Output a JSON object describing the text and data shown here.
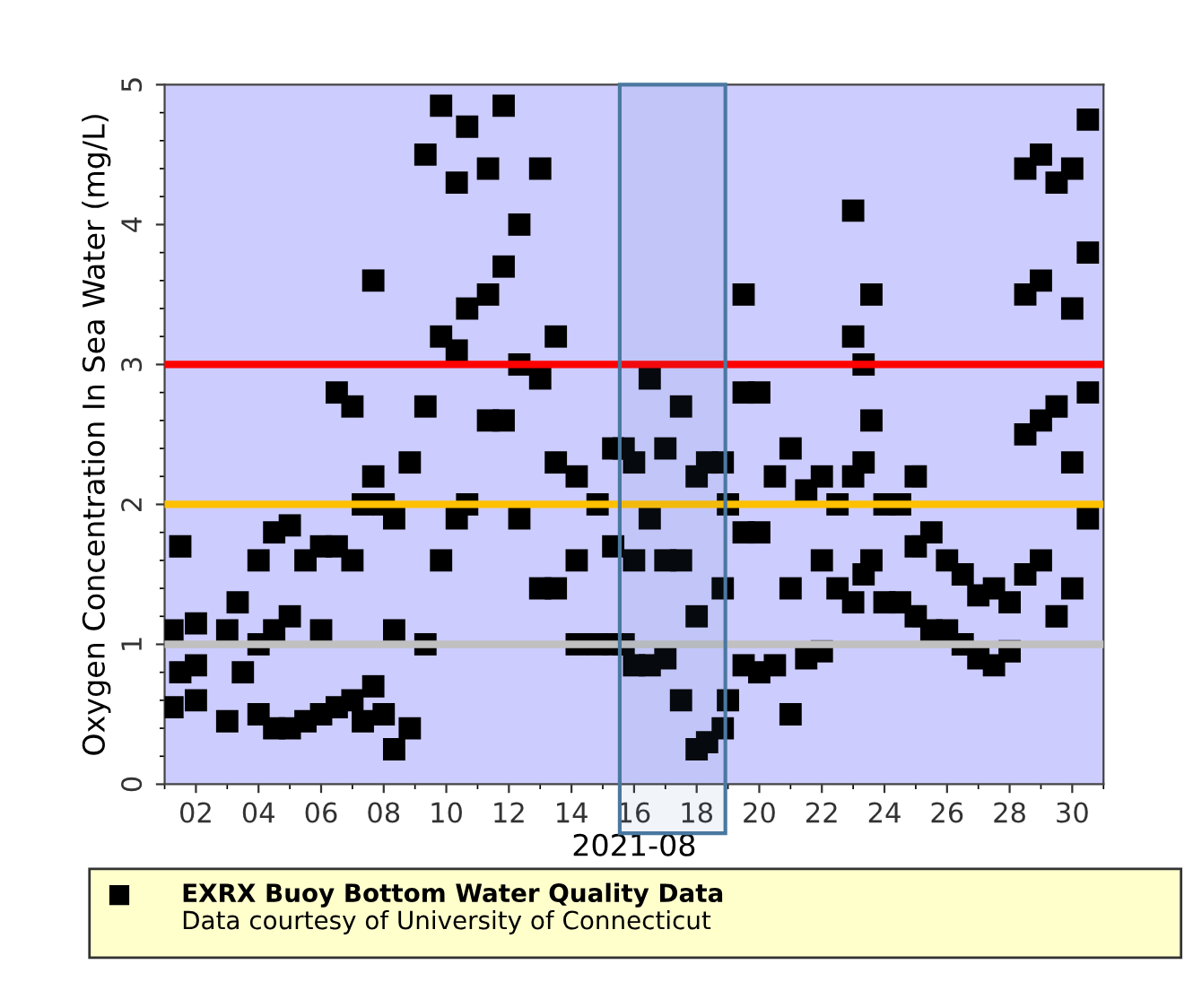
{
  "chart_data": {
    "type": "scatter",
    "xlabel": "2021-08",
    "ylabel": "Oxygen Concentration In Sea Water (mg/L)",
    "xlim": [
      "2021-08-01",
      "2021-08-31"
    ],
    "xticks": [
      {
        "value": "2021-08-02",
        "label": "02"
      },
      {
        "value": "2021-08-04",
        "label": "04"
      },
      {
        "value": "2021-08-06",
        "label": "06"
      },
      {
        "value": "2021-08-08",
        "label": "08"
      },
      {
        "value": "2021-08-10",
        "label": "10"
      },
      {
        "value": "2021-08-12",
        "label": "12"
      },
      {
        "value": "2021-08-14",
        "label": "14"
      },
      {
        "value": "2021-08-16",
        "label": "16"
      },
      {
        "value": "2021-08-18",
        "label": "18"
      },
      {
        "value": "2021-08-20",
        "label": "20"
      },
      {
        "value": "2021-08-22",
        "label": "22"
      },
      {
        "value": "2021-08-24",
        "label": "24"
      },
      {
        "value": "2021-08-26",
        "label": "26"
      },
      {
        "value": "2021-08-28",
        "label": "28"
      },
      {
        "value": "2021-08-30",
        "label": "30"
      }
    ],
    "ylim": [
      0,
      5
    ],
    "yticks": [
      0,
      1,
      2,
      3,
      4,
      5
    ],
    "marker": "square",
    "grid": false,
    "legend": "bottom",
    "series": [
      {
        "name": "EXRX Buoy Bottom Water Quality Data",
        "color": "#000000",
        "x": [
          "2021-08-01T06:00",
          "2021-08-01T06:00",
          "2021-08-01T12:00",
          "2021-08-01T12:00",
          "2021-08-02T00:00",
          "2021-08-02T00:00",
          "2021-08-02T00:00",
          "2021-08-03T00:00",
          "2021-08-03T00:00",
          "2021-08-03T08:00",
          "2021-08-03T12:00",
          "2021-08-04T00:00",
          "2021-08-04T00:00",
          "2021-08-04T00:00",
          "2021-08-04T12:00",
          "2021-08-04T12:00",
          "2021-08-04T12:00",
          "2021-08-05T00:00",
          "2021-08-05T00:00",
          "2021-08-05T00:00",
          "2021-08-05T12:00",
          "2021-08-05T12:00",
          "2021-08-06T00:00",
          "2021-08-06T00:00",
          "2021-08-06T00:00",
          "2021-08-06T12:00",
          "2021-08-06T12:00",
          "2021-08-06T12:00",
          "2021-08-07T00:00",
          "2021-08-07T00:00",
          "2021-08-07T00:00",
          "2021-08-07T08:00",
          "2021-08-07T08:00",
          "2021-08-07T16:00",
          "2021-08-07T16:00",
          "2021-08-07T16:00",
          "2021-08-08T00:00",
          "2021-08-08T00:00",
          "2021-08-08T08:00",
          "2021-08-08T08:00",
          "2021-08-08T08:00",
          "2021-08-08T20:00",
          "2021-08-08T20:00",
          "2021-08-09T08:00",
          "2021-08-09T08:00",
          "2021-08-09T08:00",
          "2021-08-09T20:00",
          "2021-08-09T20:00",
          "2021-08-09T20:00",
          "2021-08-10T08:00",
          "2021-08-10T08:00",
          "2021-08-10T08:00",
          "2021-08-10T16:00",
          "2021-08-10T16:00",
          "2021-08-10T16:00",
          "2021-08-11T08:00",
          "2021-08-11T08:00",
          "2021-08-11T08:00",
          "2021-08-11T20:00",
          "2021-08-11T20:00",
          "2021-08-11T20:00",
          "2021-08-12T08:00",
          "2021-08-12T08:00",
          "2021-08-12T08:00",
          "2021-08-13T00:00",
          "2021-08-13T00:00",
          "2021-08-13T00:00",
          "2021-08-13T12:00",
          "2021-08-13T12:00",
          "2021-08-13T12:00",
          "2021-08-14T04:00",
          "2021-08-14T04:00",
          "2021-08-14T04:00",
          "2021-08-14T20:00",
          "2021-08-14T20:00",
          "2021-08-15T08:00",
          "2021-08-15T08:00",
          "2021-08-15T08:00",
          "2021-08-15T16:00",
          "2021-08-15T16:00",
          "2021-08-16T00:00",
          "2021-08-16T00:00",
          "2021-08-16T00:00",
          "2021-08-16T12:00",
          "2021-08-16T12:00",
          "2021-08-16T12:00",
          "2021-08-17T00:00",
          "2021-08-17T00:00",
          "2021-08-17T00:00",
          "2021-08-17T12:00",
          "2021-08-17T12:00",
          "2021-08-17T12:00",
          "2021-08-18T00:00",
          "2021-08-18T00:00",
          "2021-08-18T00:00",
          "2021-08-18T08:00",
          "2021-08-18T08:00",
          "2021-08-18T20:00",
          "2021-08-18T20:00",
          "2021-08-18T20:00",
          "2021-08-19T00:00",
          "2021-08-19T00:00",
          "2021-08-19T12:00",
          "2021-08-19T12:00",
          "2021-08-19T12:00",
          "2021-08-19T12:00",
          "2021-08-20T00:00",
          "2021-08-20T00:00",
          "2021-08-20T00:00",
          "2021-08-20T12:00",
          "2021-08-20T12:00",
          "2021-08-21T00:00",
          "2021-08-21T00:00",
          "2021-08-21T00:00",
          "2021-08-21T12:00",
          "2021-08-21T12:00",
          "2021-08-22T00:00",
          "2021-08-22T00:00",
          "2021-08-22T00:00",
          "2021-08-22T12:00",
          "2021-08-22T12:00",
          "2021-08-23T00:00",
          "2021-08-23T00:00",
          "2021-08-23T00:00",
          "2021-08-23T00:00",
          "2021-08-23T08:00",
          "2021-08-23T08:00",
          "2021-08-23T08:00",
          "2021-08-23T14:00",
          "2021-08-23T14:00",
          "2021-08-23T14:00",
          "2021-08-24T00:00",
          "2021-08-24T00:00",
          "2021-08-24T12:00",
          "2021-08-24T12:00",
          "2021-08-25T00:00",
          "2021-08-25T00:00",
          "2021-08-25T00:00",
          "2021-08-25T12:00",
          "2021-08-25T12:00",
          "2021-08-26T00:00",
          "2021-08-26T00:00",
          "2021-08-26T12:00",
          "2021-08-26T12:00",
          "2021-08-27T00:00",
          "2021-08-27T00:00",
          "2021-08-27T12:00",
          "2021-08-27T12:00",
          "2021-08-28T00:00",
          "2021-08-28T00:00",
          "2021-08-28T12:00",
          "2021-08-28T12:00",
          "2021-08-28T12:00",
          "2021-08-28T12:00",
          "2021-08-29T00:00",
          "2021-08-29T00:00",
          "2021-08-29T00:00",
          "2021-08-29T00:00",
          "2021-08-29T12:00",
          "2021-08-29T12:00",
          "2021-08-29T12:00",
          "2021-08-30T00:00",
          "2021-08-30T00:00",
          "2021-08-30T00:00",
          "2021-08-30T00:00",
          "2021-08-30T12:00",
          "2021-08-30T12:00",
          "2021-08-30T12:00",
          "2021-08-30T12:00"
        ],
        "values": [
          0.55,
          1.1,
          0.8,
          1.7,
          0.6,
          0.85,
          1.15,
          0.45,
          1.1,
          1.3,
          0.8,
          0.5,
          1.0,
          1.6,
          0.4,
          1.1,
          1.8,
          0.4,
          1.2,
          1.85,
          0.45,
          1.6,
          0.5,
          1.1,
          1.7,
          0.55,
          1.7,
          2.8,
          0.6,
          1.6,
          2.7,
          0.45,
          2.0,
          0.7,
          2.2,
          3.6,
          0.5,
          2.0,
          0.25,
          1.1,
          1.9,
          0.4,
          2.3,
          1.0,
          2.7,
          4.5,
          1.6,
          3.2,
          4.85,
          1.9,
          3.1,
          4.3,
          2.0,
          3.4,
          4.7,
          2.6,
          3.5,
          4.4,
          2.6,
          3.7,
          4.85,
          1.9,
          3.0,
          4.0,
          1.4,
          2.9,
          4.4,
          1.4,
          2.3,
          3.2,
          1.0,
          1.6,
          2.2,
          1.0,
          2.0,
          1.0,
          1.7,
          2.4,
          1.0,
          2.4,
          0.85,
          1.6,
          2.3,
          0.85,
          1.9,
          2.9,
          0.9,
          1.6,
          2.4,
          0.6,
          1.6,
          2.7,
          0.25,
          1.2,
          2.2,
          0.3,
          2.3,
          0.4,
          1.4,
          2.3,
          0.6,
          2.0,
          0.85,
          1.8,
          2.8,
          3.5,
          0.8,
          1.8,
          2.8,
          0.85,
          2.2,
          0.5,
          1.4,
          2.4,
          0.9,
          2.1,
          0.95,
          1.6,
          2.2,
          1.4,
          2.0,
          1.3,
          2.2,
          3.2,
          4.1,
          1.5,
          2.3,
          3.0,
          1.6,
          2.6,
          3.5,
          1.3,
          2.0,
          1.3,
          2.0,
          1.2,
          1.7,
          2.2,
          1.1,
          1.8,
          1.1,
          1.6,
          1.0,
          1.5,
          0.9,
          1.35,
          0.85,
          1.4,
          0.95,
          1.3,
          1.5,
          2.5,
          3.5,
          4.4,
          1.6,
          2.6,
          3.6,
          4.5,
          1.2,
          2.7,
          4.3,
          1.4,
          2.3,
          3.4,
          4.4,
          1.9,
          2.8,
          3.8,
          4.75
        ]
      }
    ],
    "ref_lines": [
      {
        "axis": "y",
        "value": 3,
        "color": "#ff0000"
      },
      {
        "axis": "y",
        "value": 2,
        "color": "#ffc000"
      },
      {
        "axis": "y",
        "value": 1,
        "color": "#c0c0c0"
      }
    ],
    "bands": [
      {
        "axis": "x",
        "from": "2021-08-15T13:00",
        "to": "2021-08-18T22:00",
        "color": "#4a78a0"
      }
    ],
    "annotations": [
      "Data courtesy of University of Connecticut"
    ]
  }
}
